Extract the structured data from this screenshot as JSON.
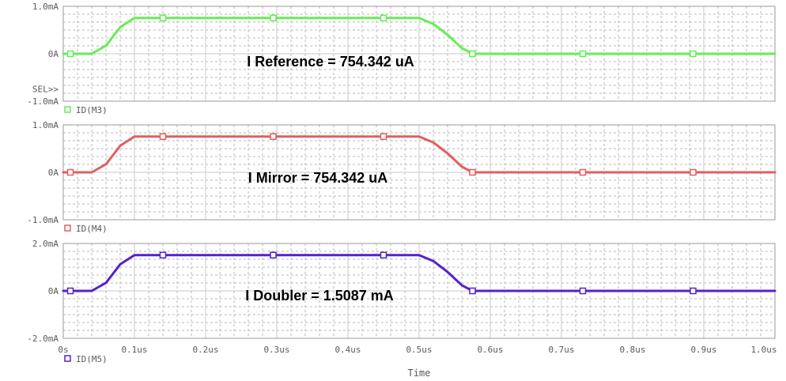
{
  "chart_data": [
    {
      "type": "line",
      "title": "",
      "xlabel": "",
      "ylabel": "",
      "ylim": [
        -1.0,
        1.0
      ],
      "yunit": "mA",
      "ytick_labels": [
        "1.0mA",
        "0A",
        "SEL>>",
        "-1.0mA"
      ],
      "legend": "ID(M3)",
      "annotation": "I Reference = 754.342 uA",
      "color": "#66ee55",
      "x": [
        0.0,
        0.04,
        0.06,
        0.08,
        0.1,
        0.14,
        0.3,
        0.45,
        0.5,
        0.52,
        0.54,
        0.56,
        0.575,
        0.73,
        0.885,
        1.0
      ],
      "values": [
        0.0,
        0.0,
        0.17,
        0.56,
        0.754,
        0.754,
        0.754,
        0.754,
        0.754,
        0.63,
        0.4,
        0.12,
        0.0,
        0.0,
        0.0,
        0.0
      ],
      "markers_x": [
        0.01,
        0.14,
        0.295,
        0.45,
        0.575,
        0.73,
        0.885
      ],
      "markers_y": [
        0.0,
        0.754,
        0.754,
        0.754,
        0.0,
        0.0,
        0.0
      ]
    },
    {
      "type": "line",
      "title": "",
      "xlabel": "",
      "ylabel": "",
      "ylim": [
        -1.0,
        1.0
      ],
      "yunit": "mA",
      "ytick_labels": [
        "1.0mA",
        "0A",
        "-1.0mA"
      ],
      "legend": "ID(M4)",
      "annotation": "I Mirror = 754.342 uA",
      "color": "#e06060",
      "x": [
        0.0,
        0.04,
        0.06,
        0.08,
        0.1,
        0.14,
        0.3,
        0.45,
        0.5,
        0.52,
        0.54,
        0.56,
        0.575,
        0.73,
        0.885,
        1.0
      ],
      "values": [
        0.0,
        0.0,
        0.17,
        0.56,
        0.754,
        0.754,
        0.754,
        0.754,
        0.754,
        0.63,
        0.4,
        0.12,
        0.0,
        0.0,
        0.0,
        0.0
      ],
      "markers_x": [
        0.01,
        0.14,
        0.295,
        0.45,
        0.575,
        0.73,
        0.885
      ],
      "markers_y": [
        0.0,
        0.754,
        0.754,
        0.754,
        0.0,
        0.0,
        0.0
      ]
    },
    {
      "type": "line",
      "title": "",
      "xlabel": "Time",
      "ylabel": "",
      "ylim": [
        -2.0,
        2.0
      ],
      "yunit": "mA",
      "ytick_labels": [
        "2.0mA",
        "0A",
        "-2.0mA"
      ],
      "legend": "ID(M5)",
      "annotation": "I Doubler = 1.5087 mA",
      "color": "#5522cc",
      "x": [
        0.0,
        0.04,
        0.06,
        0.08,
        0.1,
        0.14,
        0.3,
        0.45,
        0.5,
        0.52,
        0.54,
        0.56,
        0.575,
        0.73,
        0.885,
        1.0
      ],
      "values": [
        0.0,
        0.0,
        0.34,
        1.12,
        1.5087,
        1.5087,
        1.5087,
        1.5087,
        1.5087,
        1.26,
        0.8,
        0.24,
        0.0,
        0.0,
        0.0,
        0.0
      ],
      "markers_x": [
        0.01,
        0.14,
        0.295,
        0.45,
        0.575,
        0.73,
        0.885
      ],
      "markers_y": [
        0.0,
        1.5087,
        1.5087,
        1.5087,
        0.0,
        0.0,
        0.0
      ]
    }
  ],
  "x_axis": {
    "xlim": [
      0.0,
      1.0
    ],
    "tick_values": [
      0.0,
      0.1,
      0.2,
      0.3,
      0.4,
      0.5,
      0.6,
      0.7,
      0.8,
      0.9,
      1.0
    ],
    "tick_labels": [
      "0s",
      "0.1us",
      "0.2us",
      "0.3us",
      "0.4us",
      "0.5us",
      "0.6us",
      "0.7us",
      "0.8us",
      "0.9us",
      "1.0us"
    ],
    "label": "Time"
  },
  "style": {
    "axis_color": "#9a9a9a",
    "major_grid_color": "#c8c8c8",
    "minor_grid_color": "#b8b8b8",
    "text_color": "#5a5a5a"
  }
}
